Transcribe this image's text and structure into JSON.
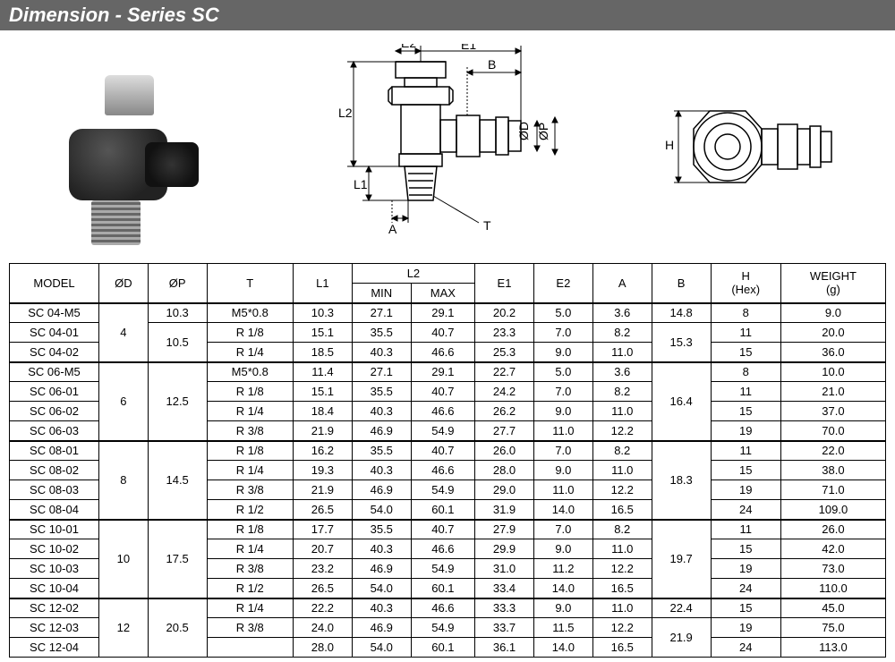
{
  "header": {
    "title": "Dimension - Series SC"
  },
  "diagram_labels": {
    "E1": "E1",
    "E2": "E2",
    "B": "B",
    "L1": "L1",
    "L2": "L2",
    "A": "A",
    "T": "T",
    "phiD": "ØD",
    "phiP": "ØP",
    "H": "H"
  },
  "table": {
    "columns": [
      "MODEL",
      "ØD",
      "ØP",
      "T",
      "L1",
      "L2_MIN",
      "L2_MAX",
      "E1",
      "E2",
      "A",
      "B",
      "H (Hex)",
      "WEIGHT (g)"
    ],
    "header": {
      "model": "MODEL",
      "d": "ØD",
      "p": "ØP",
      "t": "T",
      "l1": "L1",
      "l2": "L2",
      "l2min": "MIN",
      "l2max": "MAX",
      "e1": "E1",
      "e2": "E2",
      "a": "A",
      "b": "B",
      "h": "H",
      "hex": "(Hex)",
      "weight": "WEIGHT",
      "g": "(g)"
    },
    "groups": [
      {
        "d": "4",
        "p_rows": [
          {
            "p": "10.3",
            "span": 1,
            "rows": [
              {
                "model": "SC 04-M5",
                "t": "M5*0.8",
                "l1": "10.3",
                "l2min": "27.1",
                "l2max": "29.1",
                "e1": "20.2",
                "e2": "5.0",
                "a": "3.6",
                "b": "14.8",
                "h": "8",
                "w": "9.0"
              }
            ]
          },
          {
            "p": "10.5",
            "span": 2,
            "rows": [
              {
                "model": "SC 04-01",
                "t": "R 1/8",
                "l1": "15.1",
                "l2min": "35.5",
                "l2max": "40.7",
                "e1": "23.3",
                "e2": "7.0",
                "a": "8.2",
                "b": "15.3",
                "h": "11",
                "w": "20.0"
              },
              {
                "model": "SC 04-02",
                "t": "R 1/4",
                "l1": "18.5",
                "l2min": "40.3",
                "l2max": "46.6",
                "e1": "25.3",
                "e2": "9.0",
                "a": "11.0",
                "b": "",
                "h": "15",
                "w": "36.0"
              }
            ]
          }
        ],
        "d_span": 3,
        "b_merge": {
          "start": 1,
          "span": 2,
          "val": "15.3"
        }
      },
      {
        "d": "6",
        "p": "12.5",
        "d_span": 4,
        "b_val": "16.4",
        "rows": [
          {
            "model": "SC 06-M5",
            "t": "M5*0.8",
            "l1": "11.4",
            "l2min": "27.1",
            "l2max": "29.1",
            "e1": "22.7",
            "e2": "5.0",
            "a": "3.6",
            "h": "8",
            "w": "10.0"
          },
          {
            "model": "SC 06-01",
            "t": "R 1/8",
            "l1": "15.1",
            "l2min": "35.5",
            "l2max": "40.7",
            "e1": "24.2",
            "e2": "7.0",
            "a": "8.2",
            "h": "11",
            "w": "21.0"
          },
          {
            "model": "SC 06-02",
            "t": "R 1/4",
            "l1": "18.4",
            "l2min": "40.3",
            "l2max": "46.6",
            "e1": "26.2",
            "e2": "9.0",
            "a": "11.0",
            "h": "15",
            "w": "37.0"
          },
          {
            "model": "SC 06-03",
            "t": "R 3/8",
            "l1": "21.9",
            "l2min": "46.9",
            "l2max": "54.9",
            "e1": "27.7",
            "e2": "11.0",
            "a": "12.2",
            "h": "19",
            "w": "70.0"
          }
        ]
      },
      {
        "d": "8",
        "p": "14.5",
        "d_span": 4,
        "b_val": "18.3",
        "rows": [
          {
            "model": "SC 08-01",
            "t": "R 1/8",
            "l1": "16.2",
            "l2min": "35.5",
            "l2max": "40.7",
            "e1": "26.0",
            "e2": "7.0",
            "a": "8.2",
            "h": "11",
            "w": "22.0"
          },
          {
            "model": "SC 08-02",
            "t": "R 1/4",
            "l1": "19.3",
            "l2min": "40.3",
            "l2max": "46.6",
            "e1": "28.0",
            "e2": "9.0",
            "a": "11.0",
            "h": "15",
            "w": "38.0"
          },
          {
            "model": "SC 08-03",
            "t": "R 3/8",
            "l1": "21.9",
            "l2min": "46.9",
            "l2max": "54.9",
            "e1": "29.0",
            "e2": "11.0",
            "a": "12.2",
            "h": "19",
            "w": "71.0"
          },
          {
            "model": "SC 08-04",
            "t": "R 1/2",
            "l1": "26.5",
            "l2min": "54.0",
            "l2max": "60.1",
            "e1": "31.9",
            "e2": "14.0",
            "a": "16.5",
            "h": "24",
            "w": "109.0"
          }
        ]
      },
      {
        "d": "10",
        "p": "17.5",
        "d_span": 4,
        "b_val": "19.7",
        "rows": [
          {
            "model": "SC 10-01",
            "t": "R 1/8",
            "l1": "17.7",
            "l2min": "35.5",
            "l2max": "40.7",
            "e1": "27.9",
            "e2": "7.0",
            "a": "8.2",
            "h": "11",
            "w": "26.0"
          },
          {
            "model": "SC 10-02",
            "t": "R 1/4",
            "l1": "20.7",
            "l2min": "40.3",
            "l2max": "46.6",
            "e1": "29.9",
            "e2": "9.0",
            "a": "11.0",
            "h": "15",
            "w": "42.0"
          },
          {
            "model": "SC 10-03",
            "t": "R 3/8",
            "l1": "23.2",
            "l2min": "46.9",
            "l2max": "54.9",
            "e1": "31.0",
            "e2": "11.2",
            "a": "12.2",
            "h": "19",
            "w": "73.0"
          },
          {
            "model": "SC 10-04",
            "t": "R 1/2",
            "l1": "26.5",
            "l2min": "54.0",
            "l2max": "60.1",
            "e1": "33.4",
            "e2": "14.0",
            "a": "16.5",
            "h": "24",
            "w": "110.0"
          }
        ]
      },
      {
        "d": "12",
        "p": "20.5",
        "d_span": 3,
        "b_rows": [
          {
            "span": 1,
            "val": "22.4"
          },
          {
            "span": 2,
            "val": "21.9"
          }
        ],
        "rows": [
          {
            "model": "SC 12-02",
            "t": "R 1/4",
            "l1": "22.2",
            "l2min": "40.3",
            "l2max": "46.6",
            "e1": "33.3",
            "e2": "9.0",
            "a": "11.0",
            "h": "15",
            "w": "45.0"
          },
          {
            "model": "SC 12-03",
            "t": "R 3/8",
            "l1": "24.0",
            "l2min": "46.9",
            "l2max": "54.9",
            "e1": "33.7",
            "e2": "11.5",
            "a": "12.2",
            "h": "19",
            "w": "75.0"
          },
          {
            "model": "SC 12-04",
            "t": "",
            "l1": "28.0",
            "l2min": "54.0",
            "l2max": "60.1",
            "e1": "36.1",
            "e2": "14.0",
            "a": "16.5",
            "h": "24",
            "w": "113.0"
          }
        ]
      }
    ]
  },
  "styling": {
    "header_bg": "#666666",
    "header_fg": "#ffffff",
    "border_color": "#000000",
    "font_size_table": 13,
    "font_size_header": 22
  }
}
